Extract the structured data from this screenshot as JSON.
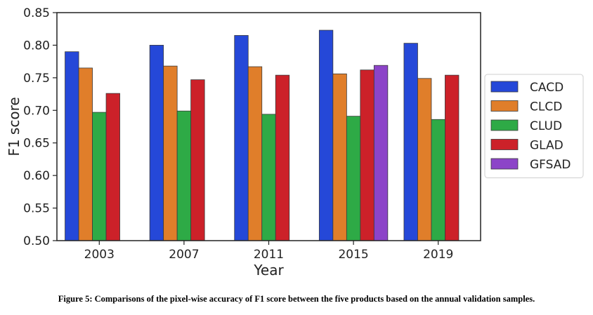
{
  "caption": "Figure 5: Comparisons of the pixel-wise accuracy of F1 score between the five products based on the annual validation samples.",
  "chart_data": {
    "type": "bar",
    "xlabel": "Year",
    "ylabel": "F1 score",
    "ylim": [
      0.5,
      0.85
    ],
    "yticks": [
      "0.50",
      "0.55",
      "0.60",
      "0.65",
      "0.70",
      "0.75",
      "0.80",
      "0.85"
    ],
    "categories": [
      "2003",
      "2007",
      "2011",
      "2015",
      "2019"
    ],
    "legend_position": "right",
    "grid": false,
    "series": [
      {
        "name": "CACD",
        "color": "#2548d8",
        "values": [
          0.79,
          0.8,
          0.815,
          0.823,
          0.803
        ]
      },
      {
        "name": "CLCD",
        "color": "#e07e2a",
        "values": [
          0.765,
          0.768,
          0.767,
          0.756,
          0.749
        ]
      },
      {
        "name": "CLUD",
        "color": "#2eaa46",
        "values": [
          0.697,
          0.699,
          0.694,
          0.691,
          0.686
        ]
      },
      {
        "name": "GLAD",
        "color": "#cc2129",
        "values": [
          0.726,
          0.747,
          0.754,
          0.762,
          0.754
        ]
      },
      {
        "name": "GFSAD",
        "color": "#8c44c8",
        "values": [
          null,
          null,
          null,
          0.769,
          null
        ]
      }
    ]
  }
}
